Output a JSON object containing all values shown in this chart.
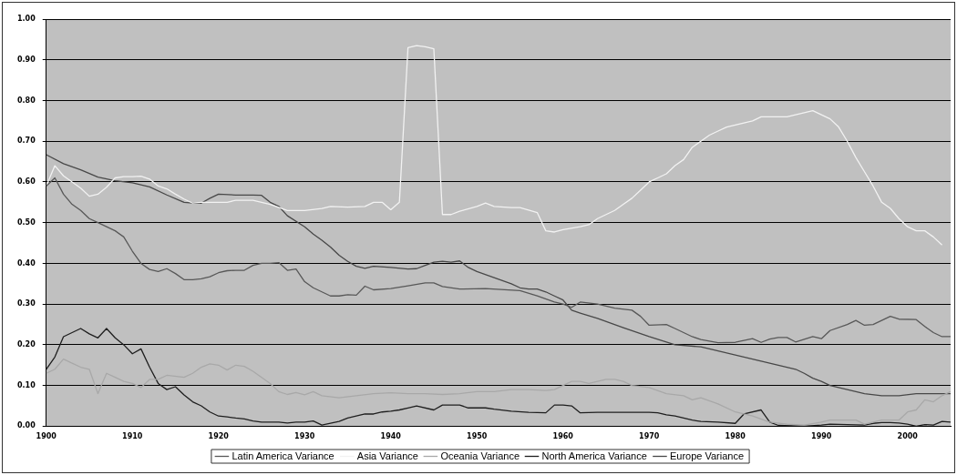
{
  "chart_data": {
    "type": "line",
    "xlim": [
      1900,
      2005
    ],
    "xticks": [
      1900,
      1910,
      1920,
      1930,
      1940,
      1950,
      1960,
      1970,
      1980,
      1990,
      2000
    ],
    "ylim": [
      0,
      1
    ],
    "yticks": [
      {
        "value": 0,
        "label": "0.00"
      },
      {
        "value": 0.1,
        "label": "0.10"
      },
      {
        "value": 0.2,
        "label": "0.20"
      },
      {
        "value": 0.3,
        "label": "0.30"
      },
      {
        "value": 0.4,
        "label": "0.40"
      },
      {
        "value": 0.5,
        "label": "0.50"
      },
      {
        "value": 0.6,
        "label": "0.60"
      },
      {
        "value": 0.7,
        "label": "0.70"
      },
      {
        "value": 0.8,
        "label": "0.80"
      },
      {
        "value": 0.9,
        "label": "0.90"
      },
      {
        "value": 1,
        "label": "1.00"
      }
    ],
    "grid": "y",
    "legend": "bottom",
    "marker": "none",
    "line_style": "solid",
    "series": [
      {
        "name": "Latin America Variance",
        "color": "#585858",
        "x": [
          1900,
          1901,
          1902,
          1903,
          1904,
          1905,
          1906,
          1907,
          1908,
          1909,
          1910,
          1911,
          1912,
          1913,
          1914,
          1915,
          1916,
          1917,
          1918,
          1919,
          1920,
          1921,
          1922,
          1923,
          1924,
          1925,
          1926,
          1927,
          1928,
          1929,
          1930,
          1931,
          1932,
          1933,
          1934,
          1935,
          1936,
          1937,
          1938,
          1940,
          1942,
          1944,
          1945,
          1946,
          1948,
          1951,
          1955,
          1957,
          1959,
          1960,
          1961,
          1962,
          1964,
          1966,
          1968,
          1969,
          1970,
          1972,
          1973,
          1975,
          1976,
          1978,
          1980,
          1982,
          1983,
          1984,
          1985,
          1986,
          1987,
          1989,
          1990,
          1991,
          1993,
          1994,
          1995,
          1996,
          1998,
          1999,
          2001,
          2002,
          2003,
          2004,
          2005
        ],
        "values": [
          0.59,
          0.61,
          0.57,
          0.545,
          0.53,
          0.51,
          0.5,
          0.49,
          0.48,
          0.465,
          0.43,
          0.4,
          0.385,
          0.38,
          0.387,
          0.375,
          0.36,
          0.36,
          0.362,
          0.367,
          0.377,
          0.382,
          0.383,
          0.383,
          0.395,
          0.4,
          0.4,
          0.402,
          0.383,
          0.386,
          0.355,
          0.34,
          0.33,
          0.32,
          0.32,
          0.323,
          0.322,
          0.344,
          0.335,
          0.338,
          0.345,
          0.352,
          0.352,
          0.343,
          0.337,
          0.338,
          0.333,
          0.32,
          0.305,
          0.3,
          0.292,
          0.305,
          0.3,
          0.29,
          0.285,
          0.27,
          0.248,
          0.25,
          0.24,
          0.22,
          0.213,
          0.205,
          0.206,
          0.215,
          0.206,
          0.214,
          0.218,
          0.218,
          0.207,
          0.22,
          0.215,
          0.235,
          0.25,
          0.26,
          0.248,
          0.25,
          0.27,
          0.263,
          0.262,
          0.245,
          0.23,
          0.22,
          0.22
        ]
      },
      {
        "name": "Asia Variance",
        "color": "#f2f2f2",
        "x": [
          1900,
          1901,
          1902,
          1903,
          1904,
          1905,
          1906,
          1907,
          1908,
          1909,
          1910,
          1911,
          1912,
          1913,
          1914,
          1915,
          1916,
          1917,
          1918,
          1921,
          1922,
          1924,
          1926,
          1928,
          1930,
          1932,
          1933,
          1935,
          1937,
          1938,
          1939,
          1940,
          1941,
          1942,
          1943,
          1944,
          1945,
          1946,
          1947,
          1948,
          1950,
          1951,
          1952,
          1954,
          1955,
          1957,
          1958,
          1959,
          1960,
          1962,
          1963,
          1964,
          1965,
          1966,
          1967,
          1968,
          1969,
          1970,
          1971,
          1972,
          1973,
          1974,
          1975,
          1976,
          1977,
          1978,
          1979,
          1980,
          1981,
          1982,
          1983,
          1985,
          1986,
          1987,
          1988,
          1989,
          1990,
          1991,
          1992,
          1993,
          1994,
          1995,
          1996,
          1997,
          1998,
          1999,
          2000,
          2001,
          2002,
          2003,
          2004
        ],
        "values": [
          0.59,
          0.64,
          0.615,
          0.6,
          0.585,
          0.565,
          0.57,
          0.587,
          0.61,
          0.613,
          0.613,
          0.614,
          0.607,
          0.59,
          0.583,
          0.57,
          0.558,
          0.548,
          0.55,
          0.55,
          0.555,
          0.555,
          0.545,
          0.53,
          0.53,
          0.535,
          0.54,
          0.538,
          0.54,
          0.55,
          0.55,
          0.532,
          0.55,
          0.93,
          0.935,
          0.932,
          0.927,
          0.52,
          0.52,
          0.528,
          0.54,
          0.548,
          0.54,
          0.537,
          0.537,
          0.525,
          0.48,
          0.477,
          0.483,
          0.49,
          0.495,
          0.51,
          0.52,
          0.53,
          0.545,
          0.56,
          0.58,
          0.6,
          0.61,
          0.62,
          0.64,
          0.655,
          0.685,
          0.7,
          0.715,
          0.725,
          0.735,
          0.74,
          0.745,
          0.75,
          0.76,
          0.76,
          0.76,
          0.765,
          0.77,
          0.775,
          0.765,
          0.755,
          0.735,
          0.7,
          0.66,
          0.625,
          0.59,
          0.55,
          0.535,
          0.51,
          0.49,
          0.48,
          0.48,
          0.465,
          0.445
        ]
      },
      {
        "name": "Oceania Variance",
        "color": "#a8a8a8",
        "x": [
          1900,
          1901,
          1902,
          1903,
          1904,
          1905,
          1906,
          1907,
          1908,
          1909,
          1910,
          1911,
          1912,
          1913,
          1914,
          1916,
          1917,
          1918,
          1919,
          1920,
          1921,
          1922,
          1923,
          1924,
          1925,
          1926,
          1927,
          1928,
          1929,
          1930,
          1931,
          1932,
          1934,
          1936,
          1938,
          1940,
          1942,
          1944,
          1946,
          1948,
          1950,
          1952,
          1954,
          1956,
          1958,
          1959,
          1960,
          1961,
          1962,
          1963,
          1964,
          1965,
          1966,
          1967,
          1968,
          1970,
          1972,
          1974,
          1975,
          1976,
          1978,
          1980,
          1982,
          1984,
          1986,
          1988,
          1990,
          1991,
          1994,
          1995,
          1997,
          1999,
          2000,
          2001,
          2002,
          2003,
          2004,
          2005
        ],
        "values": [
          0.13,
          0.14,
          0.165,
          0.155,
          0.145,
          0.14,
          0.08,
          0.13,
          0.12,
          0.11,
          0.105,
          0.095,
          0.115,
          0.115,
          0.125,
          0.12,
          0.13,
          0.145,
          0.153,
          0.15,
          0.138,
          0.15,
          0.147,
          0.135,
          0.12,
          0.105,
          0.085,
          0.078,
          0.083,
          0.077,
          0.085,
          0.075,
          0.07,
          0.075,
          0.08,
          0.082,
          0.08,
          0.08,
          0.078,
          0.08,
          0.085,
          0.085,
          0.09,
          0.09,
          0.088,
          0.09,
          0.1,
          0.11,
          0.11,
          0.105,
          0.11,
          0.115,
          0.115,
          0.11,
          0.1,
          0.095,
          0.08,
          0.075,
          0.065,
          0.07,
          0.055,
          0.035,
          0.025,
          0.01,
          0.005,
          0.003,
          0.01,
          0.015,
          0.015,
          0.005,
          0.015,
          0.015,
          0.035,
          0.04,
          0.065,
          0.06,
          0.075,
          0.085
        ]
      },
      {
        "name": "North America Variance",
        "color": "#1e1e1e",
        "x": [
          1900,
          1901,
          1902,
          1903,
          1904,
          1905,
          1906,
          1907,
          1908,
          1909,
          1910,
          1911,
          1912,
          1913,
          1914,
          1915,
          1916,
          1917,
          1918,
          1919,
          1920,
          1921,
          1922,
          1923,
          1924,
          1925,
          1927,
          1928,
          1929,
          1930,
          1931,
          1932,
          1934,
          1935,
          1936,
          1937,
          1938,
          1939,
          1940,
          1941,
          1942,
          1943,
          1945,
          1946,
          1948,
          1949,
          1951,
          1952,
          1954,
          1956,
          1958,
          1959,
          1960,
          1961,
          1962,
          1964,
          1966,
          1968,
          1970,
          1971,
          1972,
          1973,
          1974,
          1975,
          1976,
          1978,
          1980,
          1981,
          1983,
          1984,
          1985,
          1988,
          1990,
          1991,
          1993,
          1995,
          1996,
          1997,
          1998,
          1999,
          2000,
          2001,
          2002,
          2003,
          2004,
          2005
        ],
        "values": [
          0.14,
          0.17,
          0.22,
          0.23,
          0.24,
          0.227,
          0.217,
          0.24,
          0.217,
          0.2,
          0.178,
          0.19,
          0.145,
          0.105,
          0.09,
          0.097,
          0.077,
          0.06,
          0.05,
          0.035,
          0.025,
          0.023,
          0.02,
          0.018,
          0.013,
          0.01,
          0.01,
          0.008,
          0.01,
          0.01,
          0.013,
          0.003,
          0.012,
          0.02,
          0.025,
          0.03,
          0.03,
          0.035,
          0.037,
          0.04,
          0.045,
          0.05,
          0.04,
          0.052,
          0.052,
          0.045,
          0.045,
          0.042,
          0.037,
          0.034,
          0.033,
          0.052,
          0.052,
          0.05,
          0.033,
          0.034,
          0.034,
          0.034,
          0.034,
          0.033,
          0.028,
          0.025,
          0.02,
          0.015,
          0.012,
          0.01,
          0.007,
          0.03,
          0.04,
          0.01,
          0.002,
          0,
          0.003,
          0.005,
          0.004,
          0.003,
          0.007,
          0.009,
          0.009,
          0.008,
          0.005,
          0,
          0.004,
          0.003,
          0.012,
          0.01
        ]
      },
      {
        "name": "Europe Variance",
        "color": "#484848",
        "x": [
          1900,
          1902,
          1904,
          1906,
          1908,
          1910,
          1912,
          1914,
          1916,
          1917,
          1918,
          1919,
          1920,
          1922,
          1924,
          1925,
          1926,
          1927,
          1928,
          1930,
          1931,
          1932,
          1933,
          1934,
          1935,
          1936,
          1937,
          1938,
          1940,
          1942,
          1943,
          1944,
          1945,
          1946,
          1947,
          1948,
          1949,
          1950,
          1952,
          1954,
          1955,
          1956,
          1957,
          1958,
          1959,
          1960,
          1961,
          1962,
          1964,
          1967,
          1970,
          1973,
          1976,
          1978,
          1981,
          1983,
          1985,
          1987,
          1988,
          1989,
          1990,
          1991,
          1993,
          1995,
          1997,
          1999,
          2001,
          2003,
          2005
        ],
        "values": [
          0.667,
          0.645,
          0.63,
          0.612,
          0.603,
          0.598,
          0.588,
          0.568,
          0.55,
          0.548,
          0.548,
          0.56,
          0.57,
          0.568,
          0.568,
          0.567,
          0.55,
          0.54,
          0.517,
          0.49,
          0.472,
          0.457,
          0.44,
          0.42,
          0.405,
          0.393,
          0.388,
          0.393,
          0.39,
          0.386,
          0.387,
          0.395,
          0.403,
          0.405,
          0.403,
          0.406,
          0.39,
          0.38,
          0.365,
          0.35,
          0.34,
          0.337,
          0.337,
          0.33,
          0.32,
          0.31,
          0.285,
          0.278,
          0.265,
          0.242,
          0.22,
          0.2,
          0.195,
          0.185,
          0.17,
          0.16,
          0.15,
          0.14,
          0.13,
          0.118,
          0.11,
          0.1,
          0.09,
          0.08,
          0.075,
          0.075,
          0.08,
          0.08,
          0.08
        ]
      }
    ]
  }
}
